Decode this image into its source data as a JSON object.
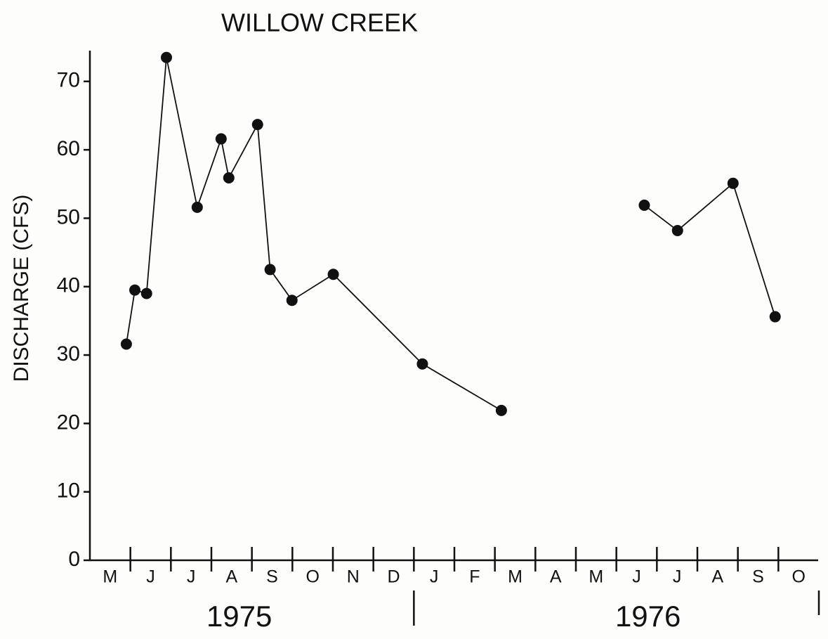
{
  "chart_data": {
    "type": "line",
    "title": "WILLOW CREEK",
    "y_label": "DISCHARGE (CFS)",
    "categories": [
      "M",
      "J",
      "J",
      "A",
      "S",
      "O",
      "N",
      "D",
      "J",
      "F",
      "M",
      "A",
      "M",
      "J",
      "J",
      "A",
      "S",
      "O"
    ],
    "years": [
      "1975",
      "1976"
    ],
    "x": [
      0.9,
      1.11,
      1.4,
      1.89,
      2.65,
      3.24,
      3.43,
      4.14,
      4.45,
      4.99,
      6.01,
      8.21,
      10.16,
      12,
      13.69,
      14.51,
      15.88,
      16.92
    ],
    "series": [
      {
        "color": "#111111",
        "values": [
          31.6,
          39.5,
          39.0,
          73.5,
          51.6,
          61.6,
          55.9,
          63.7,
          42.5,
          38.0,
          41.8,
          28.7,
          21.9,
          null,
          51.9,
          48.2,
          55.1,
          35.6
        ]
      }
    ],
    "xlim": [
      0,
      18
    ],
    "ylim": [
      0,
      74.5
    ],
    "yticks": [
      0,
      10,
      20,
      30,
      40,
      50,
      60,
      70
    ],
    "grid": false
  }
}
